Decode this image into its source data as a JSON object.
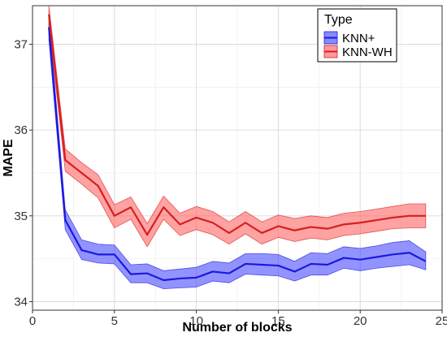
{
  "chart_data": {
    "type": "line",
    "xlabel": "Number of blocks",
    "ylabel": "MAPE",
    "xlim": [
      0,
      25
    ],
    "ylim": [
      33.9,
      37.45
    ],
    "x_ticks": [
      0,
      5,
      10,
      15,
      20,
      25
    ],
    "y_ticks": [
      34,
      35,
      36,
      37
    ],
    "grid": true,
    "legend": {
      "title": "Type",
      "position": "top-right"
    },
    "x": [
      1,
      2,
      3,
      4,
      5,
      6,
      7,
      8,
      9,
      10,
      11,
      12,
      13,
      14,
      15,
      16,
      17,
      18,
      19,
      20,
      21,
      22,
      23,
      24
    ],
    "series": [
      {
        "name": "KNN+",
        "line_color": "#1a1adb",
        "fill_color": "#3b3bff",
        "values": [
          37.2,
          34.95,
          34.6,
          34.55,
          34.55,
          34.32,
          34.33,
          34.25,
          34.27,
          34.28,
          34.35,
          34.33,
          34.44,
          34.43,
          34.42,
          34.35,
          34.44,
          34.43,
          34.51,
          34.49,
          34.52,
          34.55,
          34.57,
          34.47
        ],
        "lower": [
          37.05,
          34.84,
          34.49,
          34.45,
          34.44,
          34.22,
          34.22,
          34.15,
          34.16,
          34.17,
          34.24,
          34.22,
          34.32,
          34.31,
          34.3,
          34.24,
          34.31,
          34.31,
          34.39,
          34.36,
          34.39,
          34.41,
          34.43,
          34.37
        ],
        "upper": [
          37.32,
          35.07,
          34.72,
          34.67,
          34.66,
          34.43,
          34.44,
          34.36,
          34.38,
          34.4,
          34.47,
          34.45,
          34.56,
          34.56,
          34.55,
          34.47,
          34.57,
          34.56,
          34.64,
          34.62,
          34.65,
          34.69,
          34.71,
          34.58
        ]
      },
      {
        "name": "KNN-WH",
        "line_color": "#d42020",
        "fill_color": "#ff5555",
        "values": [
          37.35,
          35.65,
          35.5,
          35.35,
          35.0,
          35.1,
          34.78,
          35.1,
          34.9,
          34.98,
          34.92,
          34.8,
          34.92,
          34.8,
          34.88,
          34.83,
          34.87,
          34.85,
          34.9,
          34.92,
          34.95,
          34.98,
          35.0,
          35.0
        ],
        "lower": [
          37.23,
          35.52,
          35.37,
          35.21,
          34.86,
          34.96,
          34.64,
          34.96,
          34.77,
          34.84,
          34.78,
          34.67,
          34.79,
          34.67,
          34.75,
          34.7,
          34.74,
          34.72,
          34.77,
          34.79,
          34.82,
          34.85,
          34.86,
          34.86
        ],
        "upper": [
          37.45,
          35.78,
          35.62,
          35.48,
          35.13,
          35.22,
          34.91,
          35.23,
          35.03,
          35.11,
          35.05,
          34.93,
          35.05,
          34.93,
          35.01,
          34.97,
          35.0,
          34.98,
          35.03,
          35.05,
          35.08,
          35.11,
          35.14,
          35.14
        ]
      }
    ]
  }
}
